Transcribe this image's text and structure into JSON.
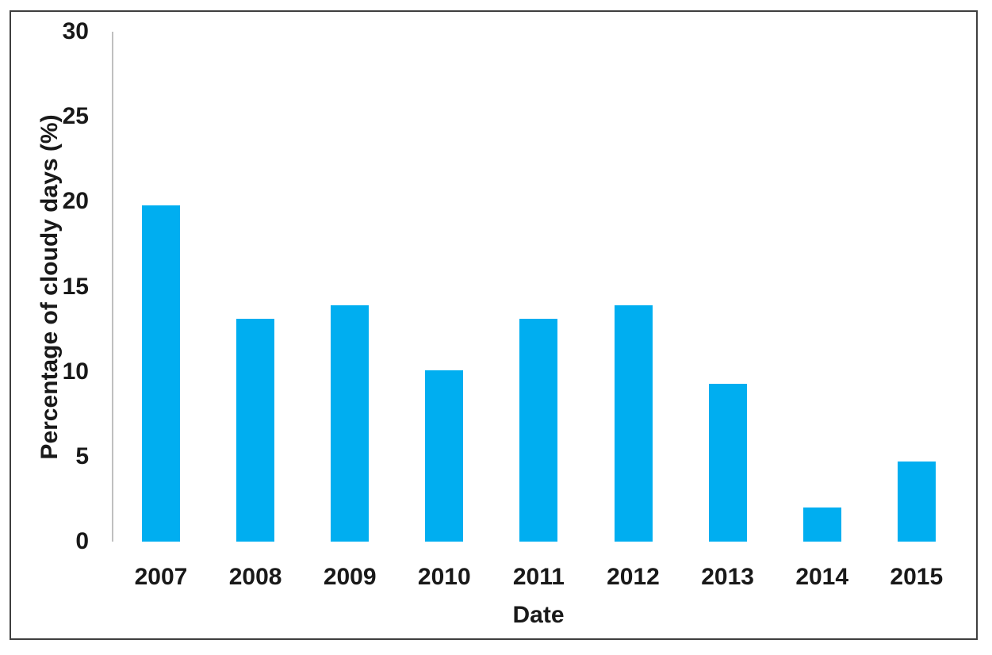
{
  "chart_data": {
    "type": "bar",
    "categories": [
      "2007",
      "2008",
      "2009",
      "2010",
      "2011",
      "2012",
      "2013",
      "2014",
      "2015"
    ],
    "values": [
      19.8,
      13.1,
      13.9,
      10.1,
      13.1,
      13.9,
      9.3,
      2.0,
      4.7
    ],
    "title": "",
    "xlabel": "Date",
    "ylabel": "Percentage of cloudy days (%)",
    "ylim": [
      0,
      30
    ],
    "yticks": [
      0,
      5,
      10,
      15,
      20,
      25,
      30
    ],
    "grid": false,
    "legend": false,
    "bar_color": "#00AEF0",
    "axis_line_color": "#BFBFBF",
    "text_color": "#191919",
    "border_color": "#3F3F3F"
  }
}
